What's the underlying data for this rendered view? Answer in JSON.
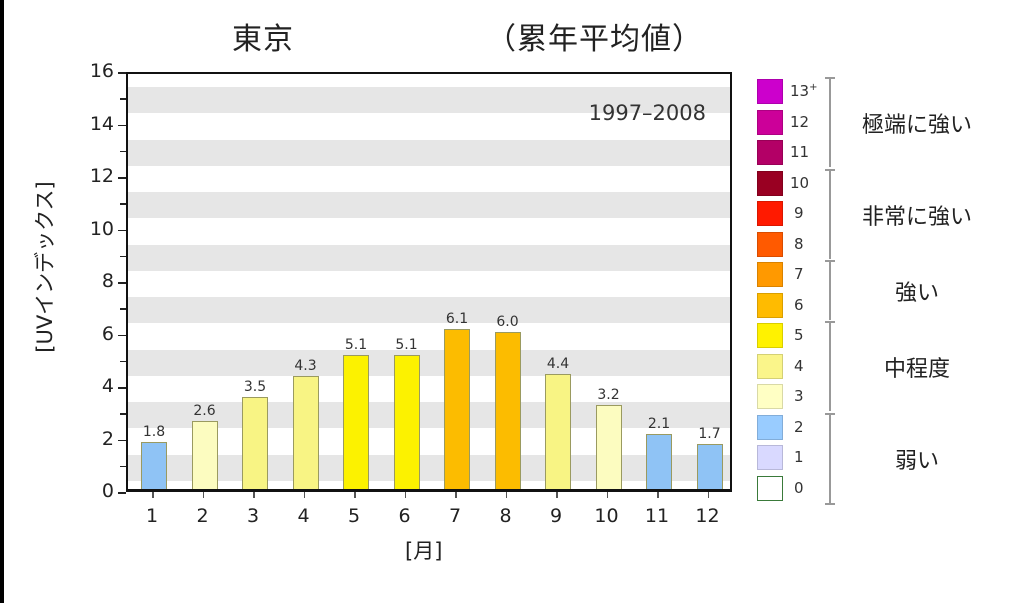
{
  "title": {
    "city": "東京",
    "subtitle": "（累年平均値）"
  },
  "period": "1997–2008",
  "axes": {
    "ylabel": "[UVインデックス]",
    "xlabel": "[月]",
    "yticks": [
      "0",
      "2",
      "4",
      "6",
      "8",
      "10",
      "12",
      "14",
      "16"
    ],
    "xticks": [
      "1",
      "2",
      "3",
      "4",
      "5",
      "6",
      "7",
      "8",
      "9",
      "10",
      "11",
      "12"
    ]
  },
  "bars": [
    {
      "month": "1",
      "value": 1.8,
      "label": "1.8",
      "color": "#8fc3f5"
    },
    {
      "month": "2",
      "value": 2.6,
      "label": "2.6",
      "color": "#fcfcc0"
    },
    {
      "month": "3",
      "value": 3.5,
      "label": "3.5",
      "color": "#f8f484"
    },
    {
      "month": "4",
      "value": 4.3,
      "label": "4.3",
      "color": "#f8f484"
    },
    {
      "month": "5",
      "value": 5.1,
      "label": "5.1",
      "color": "#fcf200"
    },
    {
      "month": "6",
      "value": 5.1,
      "label": "5.1",
      "color": "#fcf200"
    },
    {
      "month": "7",
      "value": 6.1,
      "label": "6.1",
      "color": "#fcbc00"
    },
    {
      "month": "8",
      "value": 6.0,
      "label": "6.0",
      "color": "#fcbc00"
    },
    {
      "month": "9",
      "value": 4.4,
      "label": "4.4",
      "color": "#f8f484"
    },
    {
      "month": "10",
      "value": 3.2,
      "label": "3.2",
      "color": "#fcfcc0"
    },
    {
      "month": "11",
      "value": 2.1,
      "label": "2.1",
      "color": "#8fc3f5"
    },
    {
      "month": "12",
      "value": 1.7,
      "label": "1.7",
      "color": "#8fc3f5"
    }
  ],
  "legend": {
    "scale": [
      {
        "label": "13+",
        "color": "#cc00cc"
      },
      {
        "label": "12",
        "color": "#cc0099"
      },
      {
        "label": "11",
        "color": "#b30066"
      },
      {
        "label": "10",
        "color": "#990022"
      },
      {
        "label": "9",
        "color": "#ff1a00"
      },
      {
        "label": "8",
        "color": "#ff5a00"
      },
      {
        "label": "7",
        "color": "#ff9900"
      },
      {
        "label": "6",
        "color": "#ffbb00"
      },
      {
        "label": "5",
        "color": "#fff200"
      },
      {
        "label": "4",
        "color": "#faf58a"
      },
      {
        "label": "3",
        "color": "#ffffc4"
      },
      {
        "label": "2",
        "color": "#99ccff"
      },
      {
        "label": "1",
        "color": "#d9d9ff"
      },
      {
        "label": "0",
        "color": "#ffffff"
      }
    ],
    "categories": [
      {
        "label": "極端に強い",
        "range": "11–13+"
      },
      {
        "label": "非常に強い",
        "range": "8–10"
      },
      {
        "label": "強い",
        "range": "6–7"
      },
      {
        "label": "中程度",
        "range": "3–5"
      },
      {
        "label": "弱い",
        "range": "0–2"
      }
    ]
  },
  "chart_data": {
    "type": "bar",
    "title": "東京 （累年平均値）",
    "subtitle": "1997–2008",
    "categories": [
      "1",
      "2",
      "3",
      "4",
      "5",
      "6",
      "7",
      "8",
      "9",
      "10",
      "11",
      "12"
    ],
    "values": [
      1.8,
      2.6,
      3.5,
      4.3,
      5.1,
      5.1,
      6.1,
      6.0,
      4.4,
      3.2,
      2.1,
      1.7
    ],
    "xlabel": "[月]",
    "ylabel": "[UVインデックス]",
    "ylim": [
      0,
      16
    ],
    "yticks": [
      0,
      2,
      4,
      6,
      8,
      10,
      12,
      14,
      16
    ],
    "grid": "alternating horizontal gray bands",
    "legend_position": "right",
    "legend": {
      "scale": [
        "13+",
        "12",
        "11",
        "10",
        "9",
        "8",
        "7",
        "6",
        "5",
        "4",
        "3",
        "2",
        "1",
        "0"
      ],
      "categories": {
        "極端に強い": "11-13+",
        "非常に強い": "8-10",
        "強い": "6-7",
        "中程度": "3-5",
        "弱い": "0-2"
      }
    }
  }
}
